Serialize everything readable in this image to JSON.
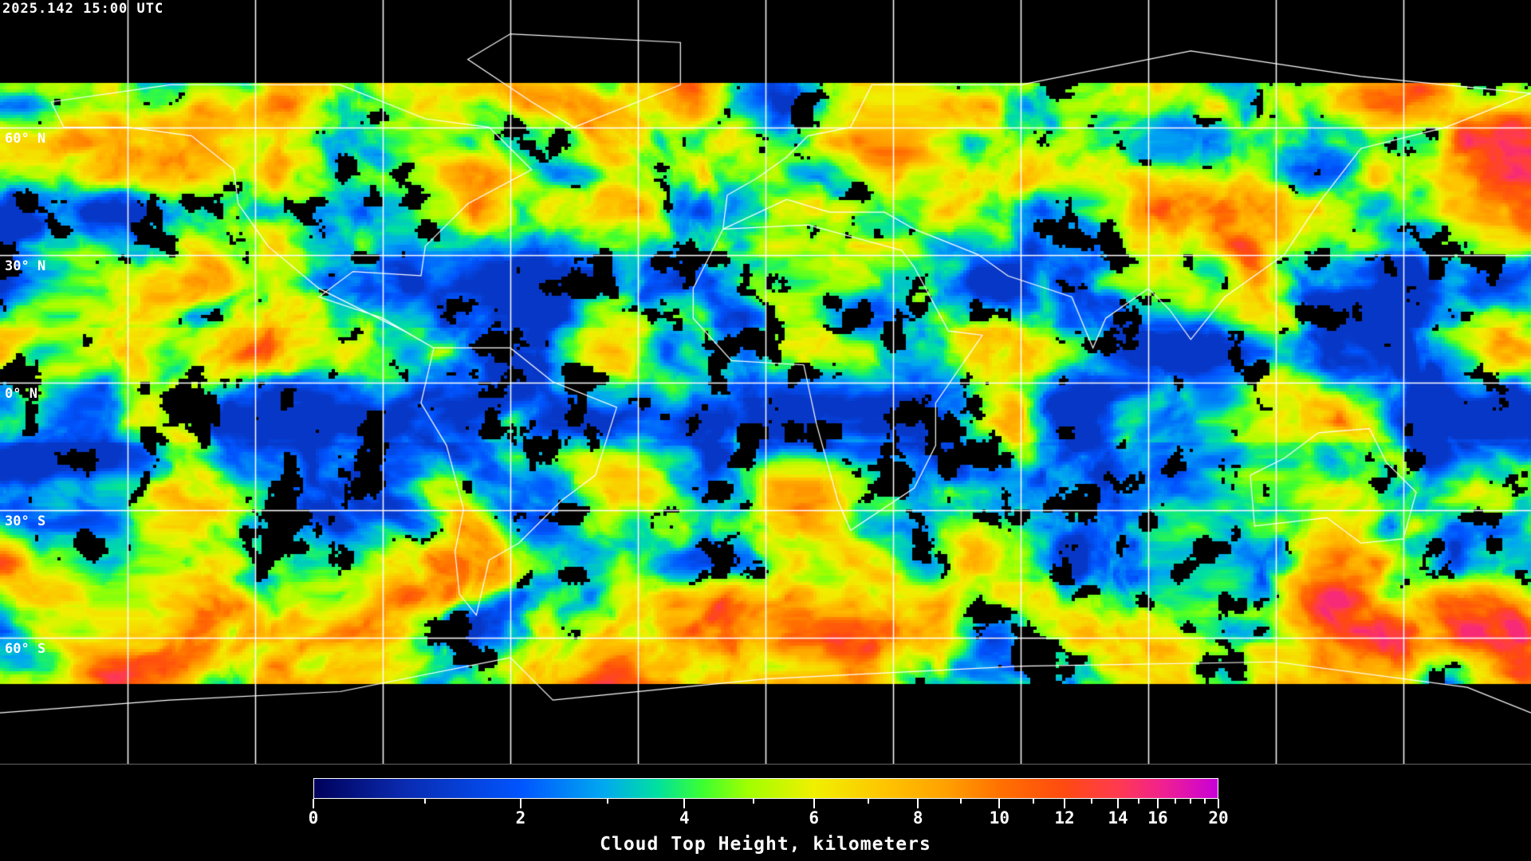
{
  "timestamp": "2025.142 15:00 UTC",
  "map": {
    "projection": "equirectangular",
    "gridlines": true,
    "grid_spacing_degrees": 30,
    "latitude_labels": [
      "60° N",
      "30° N",
      "0° N",
      "30° S",
      "60° S"
    ],
    "grid_color": "#ffffff",
    "coastline_color": "#ffffff",
    "background_color": "#000000"
  },
  "colorbar": {
    "title": "Cloud Top Height, kilometers",
    "range": [
      0,
      20
    ],
    "tick_labels": [
      "0",
      "2",
      "4",
      "6",
      "8",
      "10",
      "12",
      "14",
      "16",
      "20"
    ],
    "colors": [
      "#00005a",
      "#0055ff",
      "#00a8f0",
      "#3cff30",
      "#f0f000",
      "#ffa000",
      "#ff4a10",
      "#ff3a50",
      "#c800d8"
    ]
  }
}
